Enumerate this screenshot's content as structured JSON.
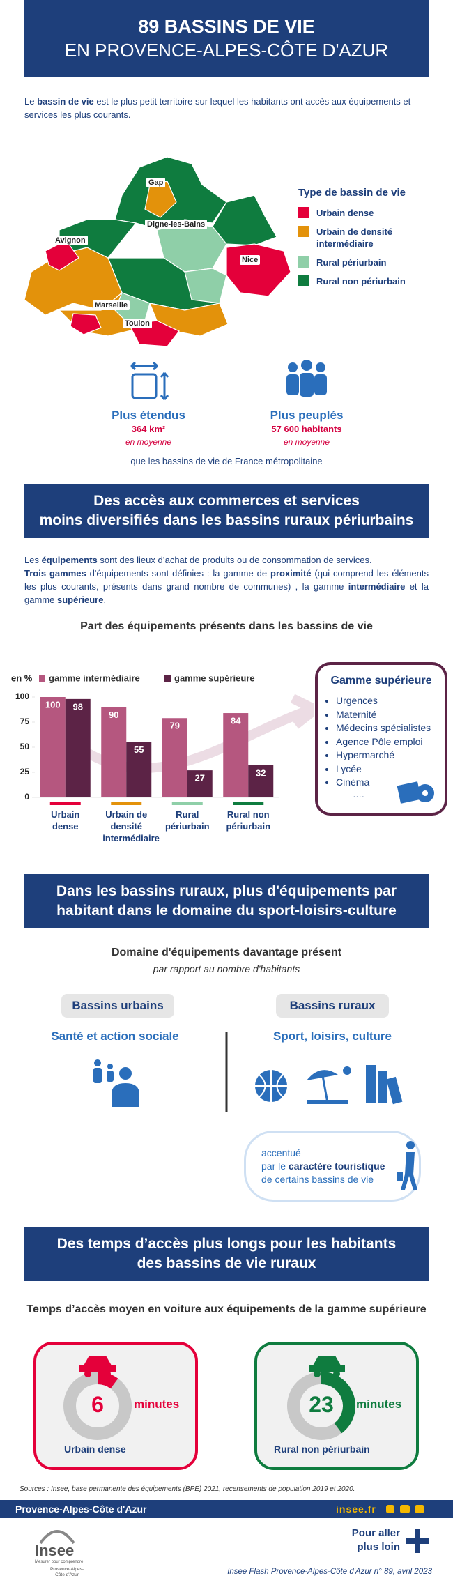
{
  "header": {
    "title_line1": "89 BASSINS DE VIE",
    "title_line2": "EN PROVENCE-ALPES-CÔTE D'AZUR"
  },
  "intro": [
    "Le ",
    "bassin de vie",
    " est le plus petit territoire sur lequel les habitants ont accès aux équipements et services les plus courants."
  ],
  "map": {
    "cities": [
      "Gap",
      "Digne-les-Bains",
      "Avignon",
      "Nice",
      "Marseille",
      "Toulon"
    ],
    "legend": {
      "title": "Type de bassin de vie",
      "items": [
        {
          "label": "Urbain dense",
          "color": "#e4003a"
        },
        {
          "label": "Urbain de densité intermédiaire",
          "color": "#e3920b"
        },
        {
          "label": "Rural périurbain",
          "color": "#8fcfa8"
        },
        {
          "label": "Rural non périurbain",
          "color": "#0f7c3f"
        }
      ]
    }
  },
  "highlights": [
    {
      "title": "Plus étendus",
      "value": "364 km²",
      "note": "en moyenne"
    },
    {
      "title": "Plus peuplés",
      "value": "57 600 habitants",
      "note": "en moyenne"
    }
  ],
  "comparison": "que les bassins de vie de France métropolitaine",
  "section1": {
    "title_lines": [
      "Des accès aux commerces et services",
      "moins diversifiés dans les bassins ruraux périurbains"
    ],
    "definition": [
      [
        "Les ",
        "équipements",
        " sont des lieux d’achat de produits ou de consommation de services."
      ],
      [
        "Trois gammes",
        " d'équipements sont définies : la gamme de ",
        "proximité",
        " (qui comprend les éléments les plus courants, présents dans  grand nombre de communes) , la gamme ",
        "intermédiaire",
        " et la gamme ",
        "supérieure",
        "."
      ]
    ]
  },
  "chart_data": {
    "type": "bar",
    "title": "Part des équipements présents dans les bassins de vie",
    "y_label": "en %",
    "categories": [
      "Urbain dense",
      "Urbain de densité intermédiaire",
      "Rural périurbain",
      "Rural non périurbain"
    ],
    "category_colors": [
      "#e4003a",
      "#e3920b",
      "#8fcfa8",
      "#0f7c3f"
    ],
    "series": [
      {
        "name": "gamme intermédiaire",
        "color": "#b5577f",
        "values": [
          100,
          90,
          79,
          84
        ]
      },
      {
        "name": "gamme supérieure",
        "color": "#5c2346",
        "values": [
          98,
          55,
          27,
          32
        ]
      }
    ],
    "ylim": [
      0,
      100
    ],
    "yticks": [
      0,
      25,
      50,
      75,
      100
    ],
    "grid": false
  },
  "gamme_box": {
    "title": "Gamme supérieure",
    "items": [
      "Urgences",
      "Maternité",
      "Médecins spécialistes",
      "Agence Pôle emploi",
      "Hypermarché",
      "Lycée",
      "Cinéma"
    ],
    "ellipsis": "…."
  },
  "section2": {
    "title_lines": [
      "Dans les bassins ruraux, plus d'équipements par",
      "habitant dans le domaine du sport-loisirs-culture"
    ],
    "subtitle": "Domaine d'équipements davantage présent",
    "note": "par rapport au nombre d'habitants",
    "urban": {
      "label": "Bassins urbains",
      "domain": "Santé et action sociale"
    },
    "rural": {
      "label": "Bassins ruraux",
      "domain": "Sport, loisirs, culture"
    },
    "callout": [
      "accentué",
      "par le ",
      "caractère touristique",
      "de certains bassins de vie"
    ]
  },
  "section3": {
    "title_lines": [
      "Des temps d’accès plus longs pour les habitants",
      "des bassins de vie ruraux"
    ],
    "subtitle": "Temps d’accès moyen en voiture aux équipements de la gamme supérieure",
    "cards": [
      {
        "value": 6,
        "unit": "minutes",
        "label": "Urbain dense"
      },
      {
        "value": 23,
        "unit": "minutes",
        "label": "Rural non périurbain"
      }
    ]
  },
  "sources": "Sources : Insee, base permanente des équipements (BPE) 2021, recensements de population 2019 et 2020.",
  "footer": {
    "region": "Provence-Alpes-Côte d'Azur",
    "site": "insee.fr",
    "logo": "Insee",
    "tagline": "Mesurer pour comprendre",
    "logo_region": "Provence-Alpes-Côte d'Azur",
    "more_lines": [
      "Pour aller",
      "plus loin"
    ],
    "publication": "Insee Flash Provence-Alpes-Côte d'Azur n° 89, avril 2023"
  }
}
